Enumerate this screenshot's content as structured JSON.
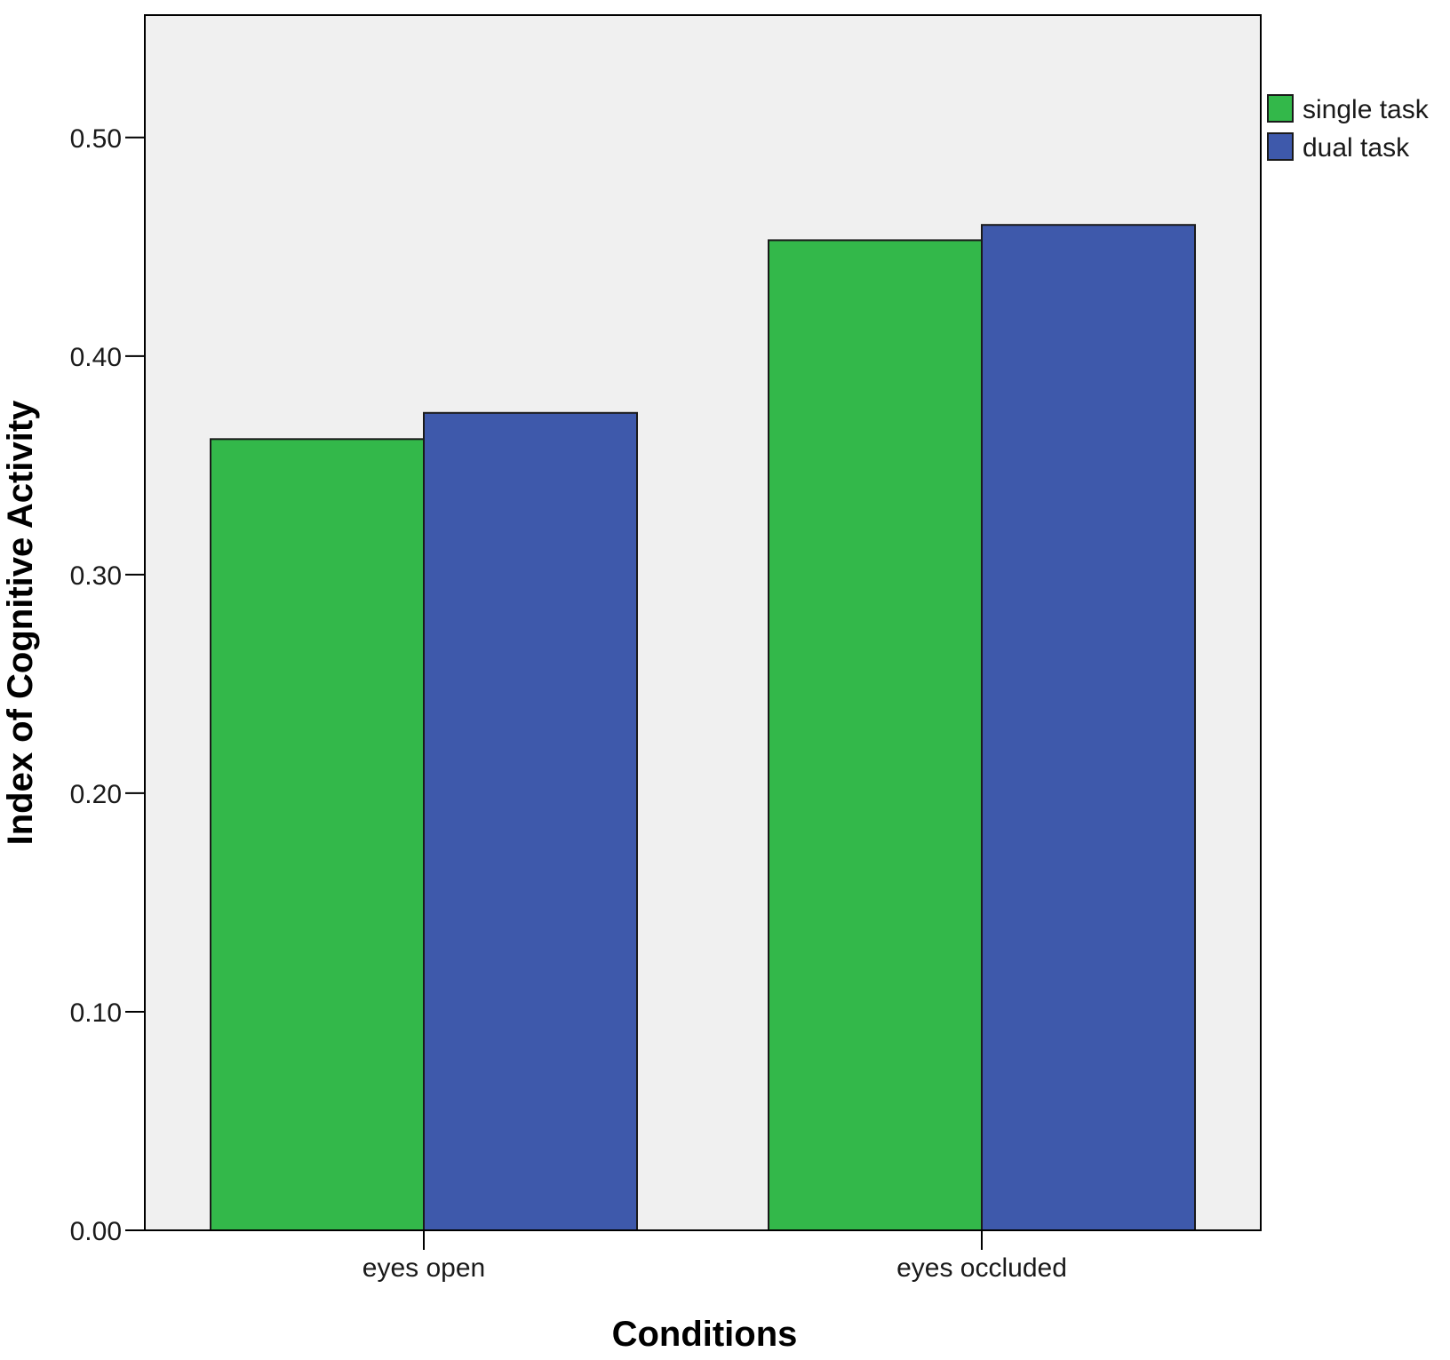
{
  "chart_data": {
    "type": "bar",
    "categories": [
      "eyes open",
      "eyes occluded"
    ],
    "series": [
      {
        "name": "single task",
        "values": [
          0.362,
          0.453
        ],
        "color": "#33b84a"
      },
      {
        "name": "dual task",
        "values": [
          0.374,
          0.46
        ],
        "color": "#3e59ab"
      }
    ],
    "xlabel": "Conditions",
    "ylabel": "Index of Cognitive Activity",
    "ylim": [
      0,
      0.556
    ],
    "yticks": [
      "0.00",
      "0.10",
      "0.20",
      "0.30",
      "0.40",
      "0.50"
    ],
    "legend_position": "top-right-outside",
    "grid": false,
    "plot_background": "#f0f0f0",
    "outline_color": "#000000"
  }
}
